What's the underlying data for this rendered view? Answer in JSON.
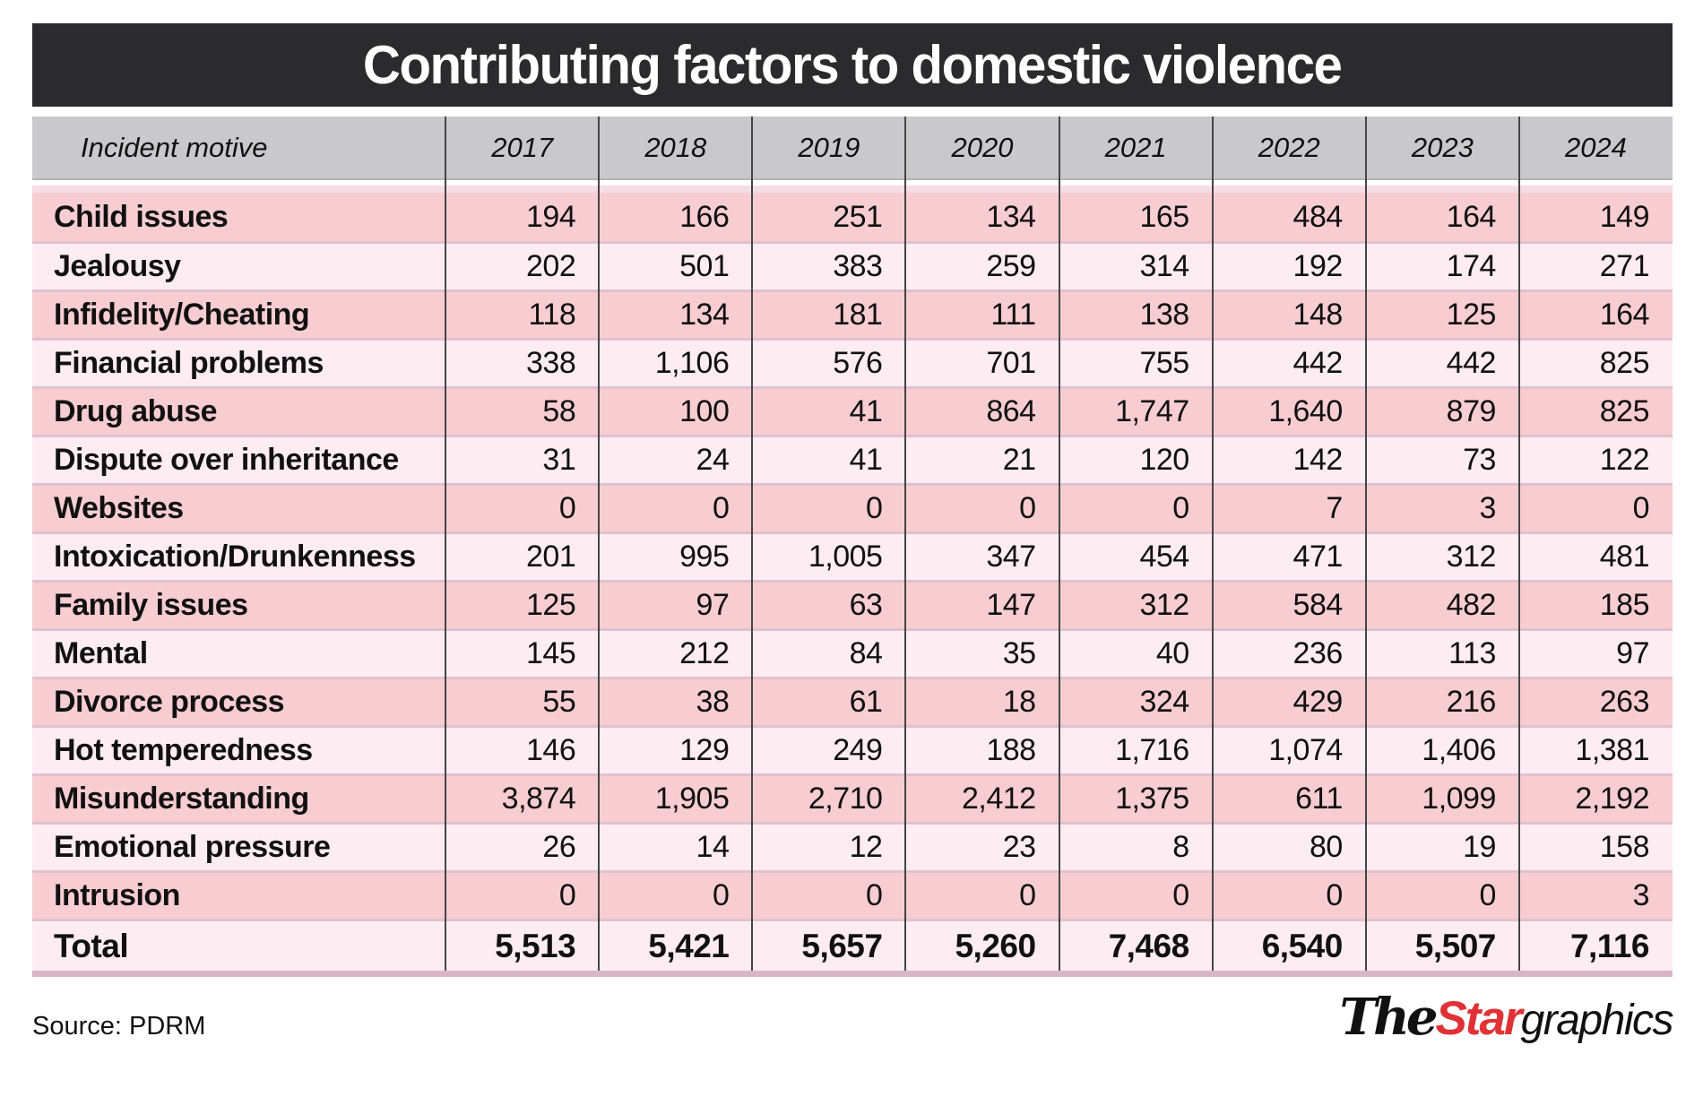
{
  "chart_data": {
    "type": "table",
    "title": "Contributing factors to domestic violence",
    "row_header_label": "Incident motive",
    "columns": [
      "2017",
      "2018",
      "2019",
      "2020",
      "2021",
      "2022",
      "2023",
      "2024"
    ],
    "rows": [
      {
        "label": "Child issues",
        "values": [
          "194",
          "166",
          "251",
          "134",
          "165",
          "484",
          "164",
          "149"
        ]
      },
      {
        "label": "Jealousy",
        "values": [
          "202",
          "501",
          "383",
          "259",
          "314",
          "192",
          "174",
          "271"
        ]
      },
      {
        "label": "Infidelity/Cheating",
        "values": [
          "118",
          "134",
          "181",
          "111",
          "138",
          "148",
          "125",
          "164"
        ]
      },
      {
        "label": "Financial problems",
        "values": [
          "338",
          "1,106",
          "576",
          "701",
          "755",
          "442",
          "442",
          "825"
        ]
      },
      {
        "label": "Drug abuse",
        "values": [
          "58",
          "100",
          "41",
          "864",
          "1,747",
          "1,640",
          "879",
          "825"
        ]
      },
      {
        "label": "Dispute over inheritance",
        "values": [
          "31",
          "24",
          "41",
          "21",
          "120",
          "142",
          "73",
          "122"
        ]
      },
      {
        "label": "Websites",
        "values": [
          "0",
          "0",
          "0",
          "0",
          "0",
          "7",
          "3",
          "0"
        ]
      },
      {
        "label": "Intoxication/Drunkenness",
        "values": [
          "201",
          "995",
          "1,005",
          "347",
          "454",
          "471",
          "312",
          "481"
        ]
      },
      {
        "label": "Family issues",
        "values": [
          "125",
          "97",
          "63",
          "147",
          "312",
          "584",
          "482",
          "185"
        ]
      },
      {
        "label": "Mental",
        "values": [
          "145",
          "212",
          "84",
          "35",
          "40",
          "236",
          "113",
          "97"
        ]
      },
      {
        "label": "Divorce process",
        "values": [
          "55",
          "38",
          "61",
          "18",
          "324",
          "429",
          "216",
          "263"
        ]
      },
      {
        "label": "Hot temperedness",
        "values": [
          "146",
          "129",
          "249",
          "188",
          "1,716",
          "1,074",
          "1,406",
          "1,381"
        ]
      },
      {
        "label": "Misunderstanding",
        "values": [
          "3,874",
          "1,905",
          "2,710",
          "2,412",
          "1,375",
          "611",
          "1,099",
          "2,192"
        ]
      },
      {
        "label": "Emotional pressure",
        "values": [
          "26",
          "14",
          "12",
          "23",
          "8",
          "80",
          "19",
          "158"
        ]
      },
      {
        "label": "Intrusion",
        "values": [
          "0",
          "0",
          "0",
          "0",
          "0",
          "0",
          "0",
          "3"
        ]
      }
    ],
    "total": {
      "label": "Total",
      "values": [
        "5,513",
        "5,421",
        "5,657",
        "5,260",
        "7,468",
        "6,540",
        "5,507",
        "7,116"
      ]
    }
  },
  "source": "Source: PDRM",
  "logo": {
    "the": "The",
    "star": "Star",
    "graphics": "graphics"
  },
  "colors": {
    "title_bar": "#2b2b2d",
    "header_gray": "#c9c9cb",
    "row_dark": "#f8cdd2",
    "row_light": "#fdedf2",
    "separator": "#e0c1ce",
    "bottom_strip": "#d9b6c5",
    "column_line": "#454545",
    "accent_red": "#e03236"
  }
}
